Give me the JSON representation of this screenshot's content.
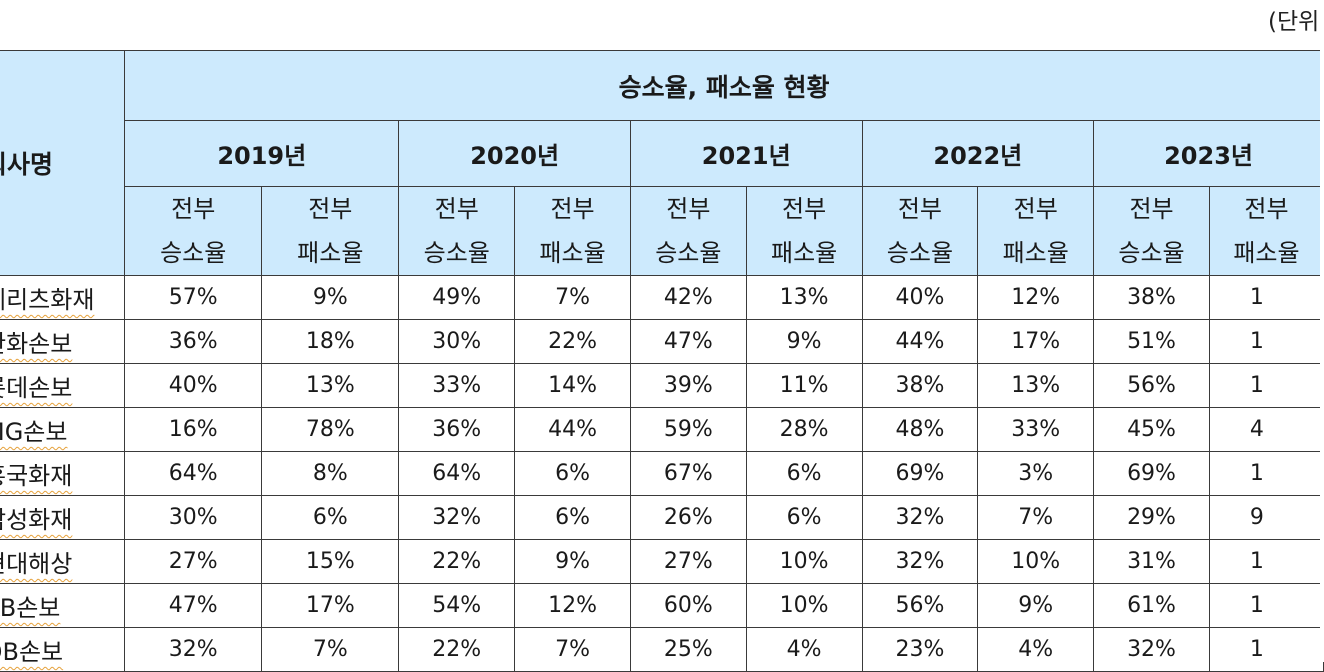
{
  "unit_label": "(단위",
  "header": {
    "company_label": "회사명",
    "title": "승소율, 패소율 현황",
    "years": [
      "2019년",
      "2020년",
      "2021년",
      "2022년",
      "2023년"
    ],
    "sub_win": [
      "전부",
      "승소율"
    ],
    "sub_loss": [
      "전부",
      "패소율"
    ]
  },
  "rows": [
    {
      "name": "메리츠화재",
      "vals": [
        "57%",
        "9%",
        "49%",
        "7%",
        "42%",
        "13%",
        "40%",
        "12%",
        "38%",
        "1"
      ]
    },
    {
      "name": "한화손보",
      "vals": [
        "36%",
        "18%",
        "30%",
        "22%",
        "47%",
        "9%",
        "44%",
        "17%",
        "51%",
        "1"
      ]
    },
    {
      "name": "롯데손보",
      "vals": [
        "40%",
        "13%",
        "33%",
        "14%",
        "39%",
        "11%",
        "38%",
        "13%",
        "56%",
        "1"
      ]
    },
    {
      "name": "MG손보",
      "vals": [
        "16%",
        "78%",
        "36%",
        "44%",
        "59%",
        "28%",
        "48%",
        "33%",
        "45%",
        "4"
      ]
    },
    {
      "name": "흥국화재",
      "vals": [
        "64%",
        "8%",
        "64%",
        "6%",
        "67%",
        "6%",
        "69%",
        "3%",
        "69%",
        "1"
      ]
    },
    {
      "name": "삼성화재",
      "vals": [
        "30%",
        "6%",
        "32%",
        "6%",
        "26%",
        "6%",
        "32%",
        "7%",
        "29%",
        "9"
      ]
    },
    {
      "name": "현대해상",
      "vals": [
        "27%",
        "15%",
        "22%",
        "9%",
        "27%",
        "10%",
        "32%",
        "10%",
        "31%",
        "1"
      ]
    },
    {
      "name": "KB손보",
      "vals": [
        "47%",
        "17%",
        "54%",
        "12%",
        "60%",
        "10%",
        "56%",
        "9%",
        "61%",
        "1"
      ]
    },
    {
      "name": "DB손보",
      "vals": [
        "32%",
        "7%",
        "22%",
        "7%",
        "25%",
        "4%",
        "23%",
        "4%",
        "32%",
        "1"
      ]
    }
  ]
}
